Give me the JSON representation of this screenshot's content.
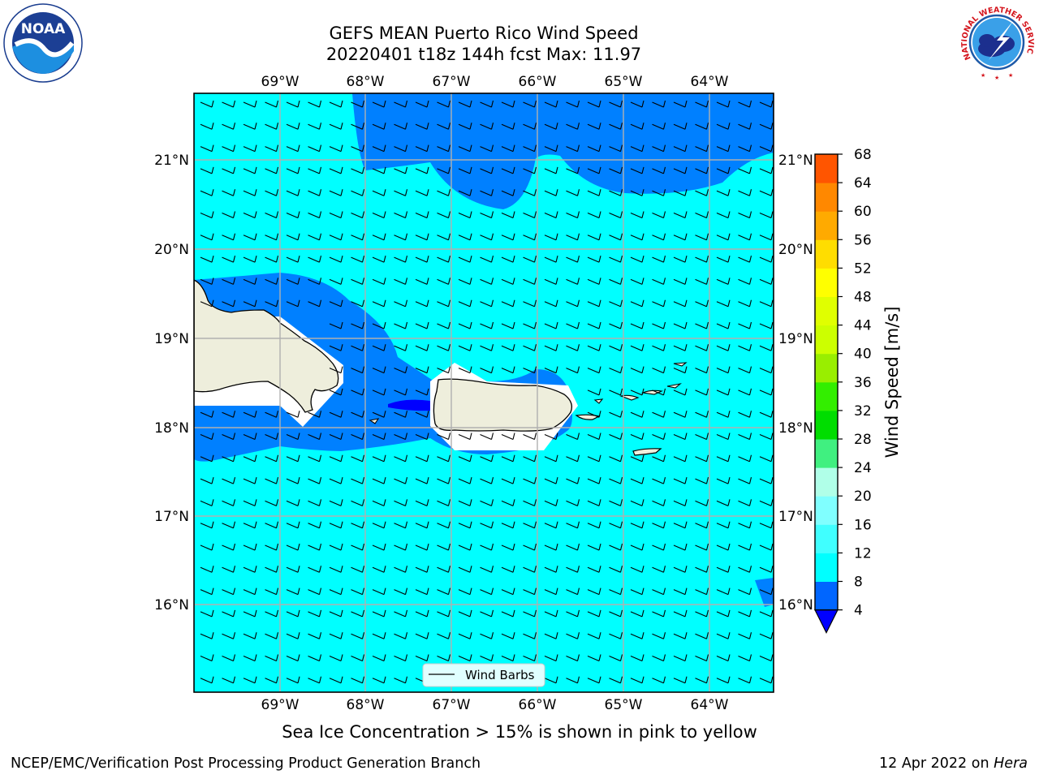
{
  "title": {
    "line1": "GEFS MEAN Puerto Rico Wind Speed",
    "line2": "20220401 t18z 144h fcst   Max: 11.97"
  },
  "caption": "Sea Ice Concentration > 15% is shown in pink to yellow",
  "footer": {
    "left": "NCEP/EMC/Verification Post Processing Product Generation Branch",
    "right_date": "12 Apr 2022 on",
    "right_host": "Hera"
  },
  "logos": [
    {
      "icon": "noaa-logo-icon",
      "text": "NOAA"
    },
    {
      "icon": "nws-logo-icon",
      "text": "NATIONAL WEATHER SERVICE"
    }
  ],
  "map": {
    "lon_ticks": [
      "69°W",
      "68°W",
      "67°W",
      "66°W",
      "65°W",
      "64°W"
    ],
    "lat_ticks": [
      "21°N",
      "20°N",
      "19°N",
      "18°N",
      "17°N",
      "16°N"
    ],
    "legend_label": "Wind Barbs",
    "colors": {
      "land": "#eeeedc",
      "background_field": "#00ffff"
    }
  },
  "colorbar": {
    "label": "Wind Speed [m/s]",
    "ticks": [
      "4",
      "8",
      "12",
      "16",
      "20",
      "24",
      "28",
      "32",
      "36",
      "40",
      "44",
      "48",
      "52",
      "56",
      "60",
      "64",
      "68"
    ],
    "colors": [
      "#0066ff",
      "#00ffff",
      "#40ffff",
      "#80ffff",
      "#b0ffe8",
      "#40f080",
      "#00dd00",
      "#33ee00",
      "#99ee00",
      "#ccff00",
      "#e0ff00",
      "#ffff00",
      "#ffdd00",
      "#ffaa00",
      "#ff8800",
      "#ff5500",
      "#ff2200",
      "#ff0000"
    ],
    "extend_min_color": "#0000ff"
  }
}
